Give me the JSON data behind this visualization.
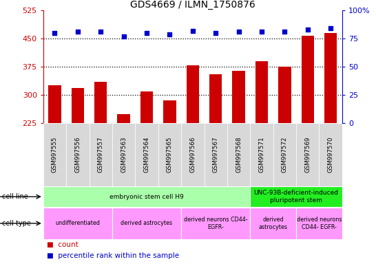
{
  "title": "GDS4669 / ILMN_1750876",
  "samples": [
    "GSM997555",
    "GSM997556",
    "GSM997557",
    "GSM997563",
    "GSM997564",
    "GSM997565",
    "GSM997566",
    "GSM997567",
    "GSM997568",
    "GSM997571",
    "GSM997572",
    "GSM997569",
    "GSM997570"
  ],
  "counts": [
    325,
    318,
    335,
    248,
    308,
    285,
    378,
    355,
    363,
    390,
    375,
    458,
    465
  ],
  "percentiles": [
    80,
    81,
    81,
    77,
    80,
    79,
    82,
    80,
    81,
    81,
    81,
    83,
    84
  ],
  "ymin": 225,
  "ymax": 525,
  "yticks": [
    225,
    300,
    375,
    450,
    525
  ],
  "yright_ticks": [
    0,
    25,
    50,
    75,
    100
  ],
  "yright_labels": [
    "0",
    "25",
    "50",
    "75",
    "100%"
  ],
  "bar_color": "#cc0000",
  "dot_color": "#0000cc",
  "cell_line_groups": [
    {
      "label": "embryonic stem cell H9",
      "start": 0,
      "end": 9,
      "color": "#aaffaa"
    },
    {
      "label": "UNC-93B-deficient-induced\npluripotent stem",
      "start": 9,
      "end": 13,
      "color": "#22ee22"
    }
  ],
  "cell_type_groups": [
    {
      "label": "undifferentiated",
      "start": 0,
      "end": 3,
      "color": "#ff99ff"
    },
    {
      "label": "derived astrocytes",
      "start": 3,
      "end": 6,
      "color": "#ff99ff"
    },
    {
      "label": "derived neurons CD44-\nEGFR-",
      "start": 6,
      "end": 9,
      "color": "#ff99ff"
    },
    {
      "label": "derived\nastrocytes",
      "start": 9,
      "end": 11,
      "color": "#ff99ff"
    },
    {
      "label": "derived neurons\nCD44- EGFR-",
      "start": 11,
      "end": 13,
      "color": "#ff99ff"
    }
  ],
  "tick_label_color_left": "#cc0000",
  "tick_label_color_right": "#0000cc",
  "gridline_y": [
    300,
    375,
    450
  ],
  "legend_items": [
    {
      "label": "count",
      "color": "#cc0000"
    },
    {
      "label": "percentile rank within the sample",
      "color": "#0000cc"
    }
  ]
}
